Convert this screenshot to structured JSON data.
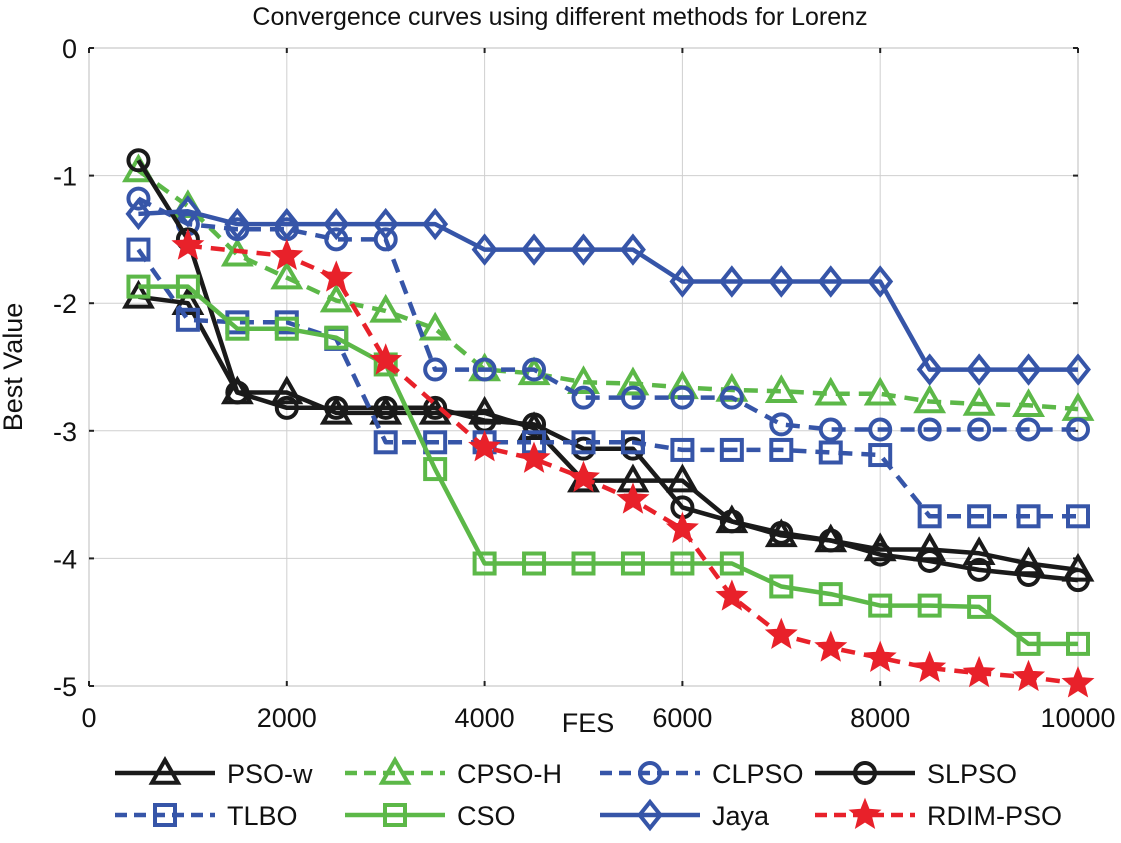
{
  "chart_data": {
    "type": "line",
    "title": "Convergence curves using different methods for Lorenz",
    "xlabel": "FES",
    "ylabel": "Best Value",
    "xlim": [
      0,
      10000
    ],
    "ylim": [
      -5,
      0
    ],
    "xticks": [
      0,
      2000,
      4000,
      6000,
      8000,
      10000
    ],
    "xtick_labels": [
      "0",
      "2000",
      "4000",
      "6000",
      "8000",
      "10000"
    ],
    "yticks": [
      0,
      -1,
      -2,
      -3,
      -4,
      -5
    ],
    "ytick_labels": [
      "0",
      "-1",
      "-2",
      "-3",
      "-4",
      "-5"
    ],
    "grid": true,
    "legend_position": "bottom",
    "x": [
      500,
      1000,
      1500,
      2000,
      2500,
      3000,
      3500,
      4000,
      4500,
      5000,
      5500,
      6000,
      6500,
      7000,
      7500,
      8000,
      8500,
      9000,
      9500,
      10000
    ],
    "series": [
      {
        "name": "PSO-w",
        "color": "#1a1a1a",
        "dash": "solid",
        "marker": "triangle",
        "values": [
          -1.95,
          -2.0,
          -2.7,
          -2.7,
          -2.86,
          -2.86,
          -2.86,
          -2.86,
          -2.98,
          -3.39,
          -3.39,
          -3.39,
          -3.71,
          -3.82,
          -3.86,
          -3.93,
          -3.93,
          -3.96,
          -4.04,
          -4.09
        ]
      },
      {
        "name": "CPSO-H",
        "color": "#5cb848",
        "dash": "dashed",
        "marker": "triangle",
        "values": [
          -0.96,
          -1.24,
          -1.62,
          -1.8,
          -1.98,
          -2.06,
          -2.2,
          -2.52,
          -2.55,
          -2.62,
          -2.63,
          -2.66,
          -2.68,
          -2.69,
          -2.71,
          -2.71,
          -2.77,
          -2.79,
          -2.8,
          -2.83
        ]
      },
      {
        "name": "CLPSO",
        "color": "#3655a8",
        "dash": "dashed",
        "marker": "circle",
        "values": [
          -1.18,
          -1.38,
          -1.42,
          -1.42,
          -1.5,
          -1.5,
          -2.52,
          -2.52,
          -2.52,
          -2.74,
          -2.74,
          -2.74,
          -2.74,
          -2.95,
          -2.99,
          -2.99,
          -2.99,
          -2.99,
          -2.99,
          -2.99
        ]
      },
      {
        "name": "SLPSO",
        "color": "#1a1a1a",
        "dash": "solid",
        "marker": "circle",
        "values": [
          -0.88,
          -1.5,
          -2.7,
          -2.82,
          -2.82,
          -2.82,
          -2.82,
          -2.92,
          -2.95,
          -3.14,
          -3.14,
          -3.6,
          -3.71,
          -3.8,
          -3.86,
          -3.97,
          -4.02,
          -4.09,
          -4.13,
          -4.17
        ]
      },
      {
        "name": "TLBO",
        "color": "#3655a8",
        "dash": "dashed",
        "marker": "square",
        "values": [
          -1.58,
          -2.13,
          -2.15,
          -2.15,
          -2.28,
          -3.09,
          -3.09,
          -3.09,
          -3.09,
          -3.09,
          -3.09,
          -3.15,
          -3.15,
          -3.15,
          -3.17,
          -3.19,
          -3.67,
          -3.67,
          -3.67,
          -3.67
        ]
      },
      {
        "name": "CSO",
        "color": "#5cb848",
        "dash": "solid",
        "marker": "square",
        "values": [
          -1.87,
          -1.87,
          -2.2,
          -2.2,
          -2.27,
          -2.48,
          -3.3,
          -4.04,
          -4.04,
          -4.04,
          -4.04,
          -4.04,
          -4.04,
          -4.22,
          -4.28,
          -4.37,
          -4.37,
          -4.38,
          -4.67,
          -4.67
        ]
      },
      {
        "name": "Jaya",
        "color": "#3655a8",
        "dash": "solid",
        "marker": "diamond",
        "values": [
          -1.3,
          -1.28,
          -1.38,
          -1.38,
          -1.38,
          -1.38,
          -1.38,
          -1.58,
          -1.58,
          -1.58,
          -1.58,
          -1.83,
          -1.83,
          -1.83,
          -1.83,
          -1.83,
          -2.52,
          -2.52,
          -2.52,
          -2.52
        ]
      },
      {
        "name": "RDIM-PSO",
        "color": "#e8212a",
        "dash": "dashed",
        "marker": "star",
        "values": [
          null,
          -1.55,
          null,
          -1.63,
          -1.8,
          -2.45,
          null,
          -3.13,
          -3.22,
          -3.37,
          -3.54,
          -3.77,
          -4.3,
          -4.6,
          -4.7,
          -4.78,
          -4.86,
          -4.9,
          -4.93,
          -4.98
        ]
      }
    ]
  }
}
